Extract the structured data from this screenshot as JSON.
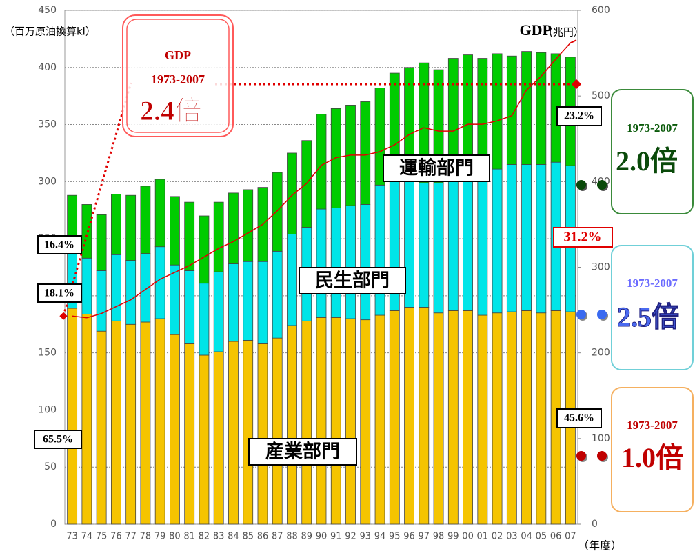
{
  "chart_data": {
    "type": "bar",
    "stacked": true,
    "y_label": "（百万原油換算kl）",
    "y2_label": "(兆円）",
    "x_label": "（年度）",
    "categories": [
      "73",
      "74",
      "75",
      "76",
      "77",
      "78",
      "79",
      "80",
      "81",
      "82",
      "83",
      "84",
      "85",
      "86",
      "87",
      "88",
      "89",
      "90",
      "91",
      "92",
      "93",
      "94",
      "95",
      "96",
      "97",
      "98",
      "99",
      "00",
      "01",
      "02",
      "03",
      "04",
      "05",
      "06",
      "07"
    ],
    "series": [
      {
        "name": "産業部門",
        "color": "#f5c400",
        "values": [
          189,
          184,
          169,
          178,
          175,
          177,
          180,
          166,
          158,
          148,
          151,
          160,
          161,
          158,
          163,
          174,
          178,
          181,
          181,
          180,
          179,
          183,
          187,
          190,
          190,
          185,
          187,
          187,
          183,
          185,
          186,
          187,
          185,
          187,
          186
        ]
      },
      {
        "name": "民生部門",
        "color": "#00e5e8",
        "values": [
          52,
          49,
          53,
          58,
          56,
          60,
          63,
          61,
          64,
          63,
          70,
          68,
          69,
          72,
          76,
          80,
          82,
          95,
          96,
          99,
          101,
          114,
          113,
          112,
          109,
          114,
          118,
          121,
          128,
          126,
          129,
          128,
          130,
          130,
          128
        ]
      },
      {
        "name": "運輸部門",
        "color": "#00cc00",
        "values": [
          47,
          47,
          49,
          53,
          57,
          59,
          59,
          60,
          60,
          59,
          61,
          62,
          63,
          65,
          69,
          71,
          76,
          83,
          87,
          88,
          90,
          85,
          95,
          98,
          105,
          99,
          103,
          103,
          97,
          101,
          95,
          99,
          98,
          95,
          95
        ]
      },
      {
        "name": "GDP",
        "type": "line",
        "axis": "y2",
        "color": "#e00000",
        "values": [
          243,
          241,
          246,
          254,
          262,
          274,
          286,
          294,
          302,
          312,
          322,
          330,
          340,
          350,
          366,
          384,
          398,
          419,
          428,
          431,
          431,
          435,
          443,
          455,
          463,
          459,
          459,
          467,
          467,
          471,
          477,
          507,
          523,
          543,
          562
        ]
      }
    ],
    "ylim": [
      0,
      450
    ],
    "yticks": [
      0,
      50,
      100,
      150,
      200,
      250,
      300,
      350,
      400,
      450
    ],
    "y2lim": [
      0,
      600
    ],
    "y2ticks": [
      0,
      100,
      200,
      300,
      400,
      500,
      600
    ],
    "grid": true,
    "annotations": {
      "gdp_box": {
        "label": "GDP",
        "period": "1973-2007",
        "ratio": "2.4倍"
      },
      "shares_1973": [
        "16.4%",
        "18.1%",
        "65.5%"
      ],
      "shares_2007": [
        "23.2%",
        "31.2%",
        "45.6%"
      ],
      "growth": [
        {
          "period": "1973-2007",
          "ratio": "2.0倍"
        },
        {
          "period": "1973-2007",
          "ratio": "2.5倍"
        },
        {
          "period": "1973-2007",
          "ratio": "1.0倍"
        }
      ]
    }
  }
}
